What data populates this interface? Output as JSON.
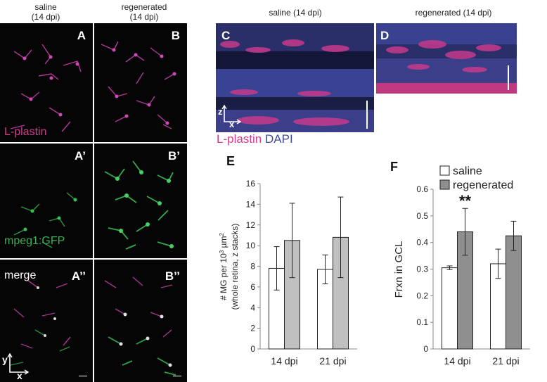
{
  "headers": {
    "saline_top": "saline",
    "saline_top_dpi": "(14 dpi)",
    "regen_top": "regenerated",
    "regen_top_dpi": "(14 dpi)",
    "saline_c": "saline (14 dpi)",
    "regen_d": "regenerated (14 dpi)"
  },
  "panel_letters": [
    "A",
    "B",
    "A’",
    "B’",
    "A’’",
    "B’’",
    "C",
    "D",
    "E",
    "F"
  ],
  "channels": {
    "lplastin": "L-plastin",
    "gfp": "mpeg1:GFP",
    "merge": "merge",
    "dapi": "DAPI"
  },
  "axes_labels": {
    "y": "y",
    "x": "x",
    "z": "z",
    "x2": "x"
  },
  "colors": {
    "magenta": "#d63a8f",
    "green": "#3ab24e",
    "blue": "#3e4a9c",
    "bar_white": "#ffffff",
    "bar_gray_E": "#c0c0c0",
    "bar_gray_F": "#8f8f8f"
  },
  "chart_data": [
    {
      "type": "bar",
      "panel": "E",
      "categories": [
        "14 dpi",
        "21 dpi"
      ],
      "series": [
        {
          "values": [
            7.8,
            7.7
          ],
          "errors": [
            2.1,
            1.4
          ]
        },
        {
          "values": [
            10.5,
            10.8
          ],
          "errors": [
            3.6,
            3.9
          ]
        }
      ],
      "ylabel_line1": "# MG per 10",
      "ylabel_sup": "3",
      "ylabel_unit": " µm",
      "ylabel_sup2": "2",
      "ylabel_line2": "(whole retina, z stacks)",
      "ylim": [
        0,
        16
      ],
      "yticks": [
        "0",
        "2",
        "4",
        "6",
        "8",
        "10",
        "12",
        "14",
        "16"
      ]
    },
    {
      "type": "bar",
      "panel": "F",
      "categories": [
        "14 dpi",
        "21 dpi"
      ],
      "series": [
        {
          "name": "saline",
          "values": [
            0.305,
            0.32
          ],
          "errors": [
            0.007,
            0.055
          ]
        },
        {
          "name": "regenerated",
          "values": [
            0.44,
            0.425
          ],
          "errors": [
            0.088,
            0.055
          ]
        }
      ],
      "ylabel": "Frxn in GCL",
      "ylim": [
        0,
        0.6
      ],
      "yticks": [
        "0",
        "0.1",
        "0.2",
        "0.3",
        "0.4",
        "0.5",
        "0.6"
      ],
      "annotation": "**"
    }
  ]
}
